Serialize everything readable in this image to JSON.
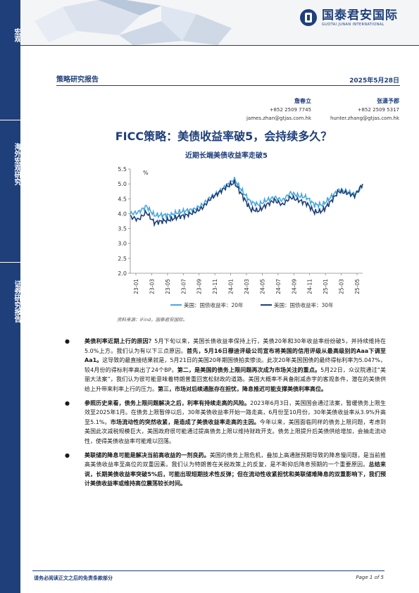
{
  "sidebar": {
    "top": "宏观",
    "middle": "海外宏观研究",
    "bottom": "证券研究报告"
  },
  "logo": {
    "cn": "国泰君安国际",
    "en": "GUOTAI JUNAN INTERNATIONAL"
  },
  "header": {
    "report_type": "策略研究报告",
    "date": "2025年5月28日"
  },
  "authors": [
    {
      "name": "詹春立",
      "phone": "+852 2509 7745",
      "email": "james.zhan@gtjas.com.hk"
    },
    {
      "name": "张潇予郡",
      "phone": "+852 2509 5317",
      "email": "hunter.zhang@gtjas.com.hk"
    }
  ],
  "title": "FICC策略：美债收益率破5，会持续多久？",
  "chart_caption": "近期长端美债收益率走破5",
  "source": "资料来源：iFind，国泰君安国际。",
  "chart_data": {
    "type": "line",
    "ylabel": "%",
    "ylim": [
      2.0,
      5.5
    ],
    "yticks": [
      2.0,
      2.5,
      3.0,
      3.5,
      4.0,
      4.5,
      5.0,
      5.5
    ],
    "xticks": [
      "23-01",
      "23-03",
      "23-05",
      "23-07",
      "23-09",
      "23-11",
      "24-01",
      "24-03",
      "24-05",
      "24-07",
      "24-09",
      "24-11",
      "25-01",
      "25-03",
      "25-05"
    ],
    "legend_position": "bottom",
    "series": [
      {
        "name": "美国：国债收益率：20年",
        "color": "#4aa8dc",
        "x": [
          0,
          1,
          2,
          3,
          4,
          5,
          6,
          7,
          8,
          9,
          10,
          11,
          12,
          13,
          14,
          15,
          16,
          17,
          18,
          19,
          20,
          21,
          22,
          23,
          24,
          25,
          26,
          27,
          28,
          29
        ],
        "values": [
          4.0,
          4.05,
          4.25,
          3.95,
          3.95,
          3.95,
          4.05,
          4.1,
          4.15,
          4.3,
          4.55,
          4.7,
          4.95,
          5.15,
          4.75,
          4.4,
          4.3,
          4.45,
          4.55,
          4.45,
          4.7,
          4.6,
          4.55,
          4.3,
          4.3,
          4.55,
          4.8,
          4.75,
          4.65,
          4.9
        ]
      },
      {
        "name": "美国：国债收益率：30年",
        "color": "#1f3f7a",
        "x": [
          0,
          1,
          2,
          3,
          4,
          5,
          6,
          7,
          8,
          9,
          10,
          11,
          12,
          13,
          14,
          15,
          16,
          17,
          18,
          19,
          20,
          21,
          22,
          23,
          24,
          25,
          26,
          27,
          28,
          29
        ],
        "values": [
          3.9,
          3.8,
          4.05,
          3.7,
          3.75,
          3.8,
          3.9,
          3.95,
          4.05,
          4.2,
          4.5,
          4.7,
          4.9,
          5.05,
          4.6,
          4.15,
          4.1,
          4.3,
          4.45,
          4.3,
          4.55,
          4.45,
          4.35,
          4.05,
          4.1,
          4.4,
          4.75,
          4.7,
          4.6,
          5.0
        ]
      }
    ]
  },
  "paragraphs": [
    [
      {
        "t": "美债利率近期上行的原因？",
        "b": true
      },
      {
        "t": "5月下旬以来，美国长债收益率保持上行，美债20年和30年收益率纷纷破5，并持续维持在5.0%上方。我们认为有以下三点原因。",
        "b": false
      },
      {
        "t": "首先，5月16日穆迪评级公司宣布将美国的信用评级从最高级别的Aaa下调至Aa1。",
        "b": true
      },
      {
        "t": "这导致的最直接结果就是，5月21日的美国20年期国债拍卖惨淡。此次20年美国国债的最终得标利率为5.047%，较4月份的得标利率高出了24个BP。",
        "b": false
      },
      {
        "t": "第二，是美国的债务上限问题再次成为市场关注的重点。",
        "b": true
      },
      {
        "t": "5月22日，众议院通过“美丽大法案”，我们认为很可能意味着特朗普重回宽松财政的道路。美国大概率不具备削减赤字的客观条件，潜在的美债供给上升带来利率上行的压力。",
        "b": false
      },
      {
        "t": "第三，市场对后续通胀存在担忧，降息推迟可能支撑美债利率高位。",
        "b": true
      }
    ],
    [
      {
        "t": "参照历史来看，债务上限问题解决之后，利率有持续走高的风险。",
        "b": true
      },
      {
        "t": "2023年6月3日，美国国会通过法案，暂缓债务上限生效至2025年1月。在债务上限暂停以后，30年美债收益率开始一路走高，6月份至10月份，30年美债收益率从3.9%升高至5.1%。",
        "b": false
      },
      {
        "t": "市场流动性的突然收紧，是造成了美债收益率走高的主因。",
        "b": true
      },
      {
        "t": "今年以来，美国面临同样的债务上限问题，考虑到美国此次减税规模巨大，美国政府很可能通过提高债务上限以维持财政开支。债务上限提升后美债供给增加，会抽走流动性，使得美债收益率可能难以回落。",
        "b": false
      }
    ],
    [
      {
        "t": "美联储的降息可能是解决当前高收益的一剂良药。",
        "b": true
      },
      {
        "t": "美国的债务上限危机，叠加上高通胀预期导致的降息慢问题，是当前推高美债收益率至高位的双重因素。我们认为特朗普在关税政策上的反复，是不断抑后降息预期的一个重要原因。",
        "b": false
      },
      {
        "t": "总结来说，长期美债收益率突破5%后，可能出现短期技术性反弹；但在流动性收紧担忧和美联储难降息的双重影响下，我们预计美债收益率或维持高位震荡较长时间。",
        "b": true
      }
    ]
  ],
  "footer": {
    "left": "请务必阅读正文之后的免责条款部分",
    "right": "Page 1 of 5"
  }
}
